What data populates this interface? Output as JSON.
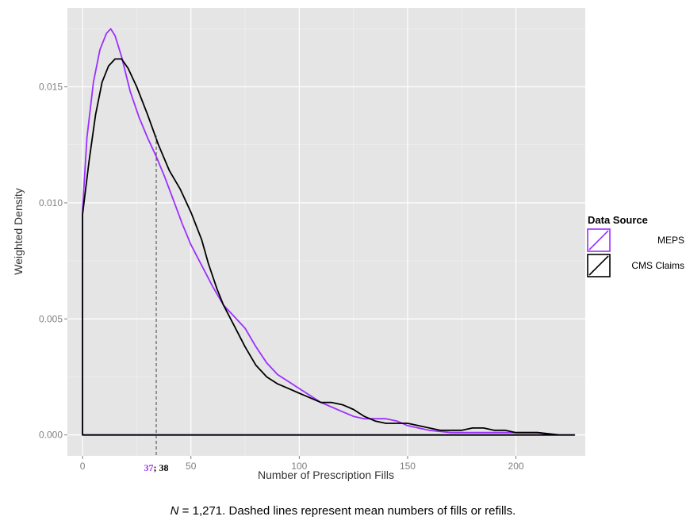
{
  "chart_data": {
    "type": "line",
    "xlabel": "Number of Prescription Fills",
    "ylabel": "Weighted Density",
    "xlim": [
      -7,
      232
    ],
    "ylim": [
      -0.0009,
      0.0184
    ],
    "x_ticks": [
      0,
      50,
      100,
      150,
      200
    ],
    "x_tick_labels": [
      "0",
      "50",
      "100",
      "150",
      "200"
    ],
    "y_ticks": [
      0.0,
      0.005,
      0.01,
      0.015
    ],
    "y_tick_labels": [
      "0.000",
      "0.005",
      "0.010",
      "0.015"
    ],
    "grid": true,
    "background": "#e5e5e5",
    "legend": {
      "title": "Data Source",
      "position": "right",
      "entries": [
        "MEPS",
        "CMS Claims"
      ]
    },
    "series": [
      {
        "name": "MEPS",
        "color": "#9b30ff",
        "points": [
          [
            0,
            0.0097
          ],
          [
            2,
            0.0128
          ],
          [
            5,
            0.0152
          ],
          [
            8,
            0.0166
          ],
          [
            11,
            0.0173
          ],
          [
            13,
            0.0175
          ],
          [
            15,
            0.0172
          ],
          [
            18,
            0.0163
          ],
          [
            22,
            0.0148
          ],
          [
            26,
            0.0137
          ],
          [
            30,
            0.0128
          ],
          [
            34,
            0.012
          ],
          [
            38,
            0.0111
          ],
          [
            42,
            0.0101
          ],
          [
            46,
            0.0091
          ],
          [
            50,
            0.0082
          ],
          [
            55,
            0.0073
          ],
          [
            60,
            0.0064
          ],
          [
            65,
            0.0056
          ],
          [
            70,
            0.0051
          ],
          [
            75,
            0.0046
          ],
          [
            80,
            0.0038
          ],
          [
            85,
            0.0031
          ],
          [
            90,
            0.0026
          ],
          [
            95,
            0.0023
          ],
          [
            100,
            0.002
          ],
          [
            105,
            0.0017
          ],
          [
            110,
            0.0014
          ],
          [
            115,
            0.0012
          ],
          [
            120,
            0.001
          ],
          [
            125,
            0.0008
          ],
          [
            130,
            0.0007
          ],
          [
            135,
            0.0007
          ],
          [
            140,
            0.0007
          ],
          [
            145,
            0.0006
          ],
          [
            150,
            0.0004
          ],
          [
            155,
            0.0003
          ],
          [
            160,
            0.0002
          ],
          [
            170,
            0.0001
          ],
          [
            180,
            0.0001
          ],
          [
            190,
            0.0001
          ],
          [
            200,
            0.0001
          ],
          [
            210,
            0.0001
          ],
          [
            220,
            0.0
          ],
          [
            227,
            0.0
          ],
          [
            0,
            0.0
          ],
          [
            0,
            0.0097
          ]
        ]
      },
      {
        "name": "CMS Claims",
        "color": "#000000",
        "points": [
          [
            0,
            0.0095
          ],
          [
            3,
            0.0118
          ],
          [
            6,
            0.0138
          ],
          [
            9,
            0.0152
          ],
          [
            12,
            0.0159
          ],
          [
            15,
            0.0162
          ],
          [
            18,
            0.0162
          ],
          [
            21,
            0.0158
          ],
          [
            25,
            0.015
          ],
          [
            30,
            0.0138
          ],
          [
            35,
            0.0125
          ],
          [
            40,
            0.0114
          ],
          [
            45,
            0.0106
          ],
          [
            50,
            0.0096
          ],
          [
            55,
            0.0084
          ],
          [
            58,
            0.0074
          ],
          [
            62,
            0.0063
          ],
          [
            65,
            0.0056
          ],
          [
            70,
            0.0047
          ],
          [
            75,
            0.0038
          ],
          [
            80,
            0.003
          ],
          [
            85,
            0.0025
          ],
          [
            90,
            0.0022
          ],
          [
            95,
            0.002
          ],
          [
            100,
            0.0018
          ],
          [
            105,
            0.0016
          ],
          [
            110,
            0.0014
          ],
          [
            115,
            0.0014
          ],
          [
            120,
            0.0013
          ],
          [
            125,
            0.0011
          ],
          [
            130,
            0.0008
          ],
          [
            135,
            0.0006
          ],
          [
            140,
            0.0005
          ],
          [
            145,
            0.0005
          ],
          [
            150,
            0.0005
          ],
          [
            155,
            0.0004
          ],
          [
            160,
            0.0003
          ],
          [
            165,
            0.0002
          ],
          [
            170,
            0.0002
          ],
          [
            175,
            0.0002
          ],
          [
            180,
            0.0003
          ],
          [
            185,
            0.0003
          ],
          [
            190,
            0.0002
          ],
          [
            195,
            0.0002
          ],
          [
            200,
            0.0001
          ],
          [
            210,
            0.0001
          ],
          [
            220,
            0.0
          ],
          [
            227,
            0.0
          ],
          [
            0,
            0.0
          ],
          [
            0,
            0.0095
          ]
        ]
      }
    ],
    "mean_line": {
      "x": 34,
      "y_top": 0.0129
    },
    "mean_labels": [
      {
        "text": "37",
        "color": "#9b30ff"
      },
      {
        "text": "; 38",
        "color": "#000000"
      }
    ]
  },
  "caption": {
    "n_label": "N",
    "text": " = 1,271. Dashed lines represent mean numbers of fills or refills."
  }
}
